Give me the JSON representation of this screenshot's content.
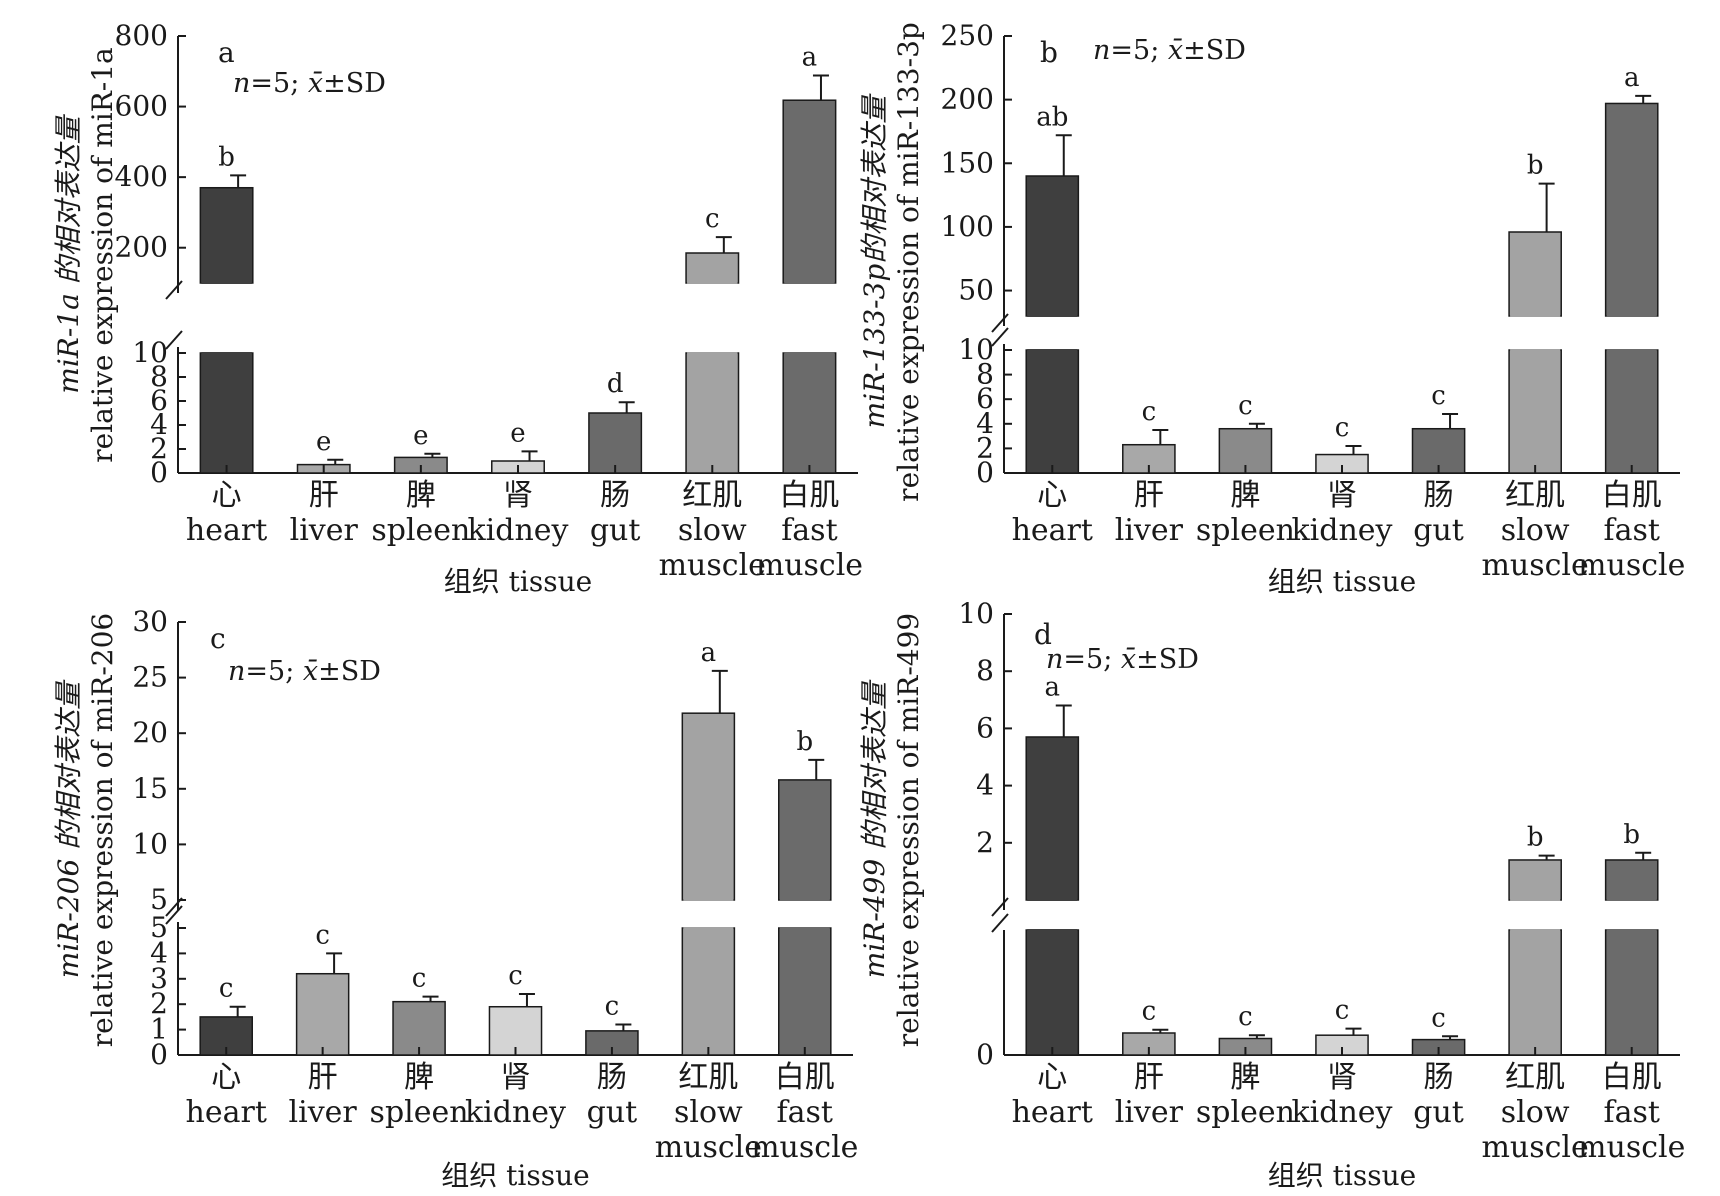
{
  "categories": [
    {
      "cn": "心",
      "en1": "heart",
      "en2": ""
    },
    {
      "cn": "肝",
      "en1": "liver",
      "en2": ""
    },
    {
      "cn": "脾",
      "en1": "spleen",
      "en2": ""
    },
    {
      "cn": "肾",
      "en1": "kidney",
      "en2": ""
    },
    {
      "cn": "肠",
      "en1": "gut",
      "en2": ""
    },
    {
      "cn": "红肌",
      "en1": "slow",
      "en2": "muscle"
    },
    {
      "cn": "白肌",
      "en1": "fast",
      "en2": "muscle"
    }
  ],
  "colors": [
    "#3f3f3f",
    "#a8a8a8",
    "#8a8a8a",
    "#d4d4d4",
    "#6a6a6a",
    "#a3a3a3",
    "#6b6b6b"
  ],
  "chart_data": [
    {
      "type": "bar",
      "panel": "a",
      "stat_note": "n=5; x̄±SD",
      "xlabel": "组织 tissue",
      "ylabel_line1": "miR-1a 的相对表达量",
      "ylabel_line2": "relative expression of miR-1a",
      "axis_break": true,
      "lower_ylim": [
        0,
        10
      ],
      "upper_ylim": [
        100,
        800
      ],
      "lower_ticks": [
        "0",
        "2",
        "4",
        "6",
        "8",
        "10"
      ],
      "upper_ticks": [
        "200",
        "400",
        "600",
        "800"
      ],
      "categories": [
        "heart",
        "liver",
        "spleen",
        "kidney",
        "gut",
        "slow muscle",
        "fast muscle"
      ],
      "values": [
        370,
        0.7,
        1.3,
        1.0,
        5.0,
        185,
        618
      ],
      "errors": [
        35,
        0.4,
        0.3,
        0.8,
        0.9,
        45,
        70
      ],
      "significance": [
        "b",
        "e",
        "e",
        "e",
        "d",
        "c",
        "a"
      ]
    },
    {
      "type": "bar",
      "panel": "b",
      "stat_note": "n=5; x̄±SD",
      "xlabel": "组织 tissue",
      "ylabel_line1": "miR-133-3p的相对表达量",
      "ylabel_line2": "relative expression of miR-133-3p",
      "axis_break": true,
      "lower_ylim": [
        0,
        10
      ],
      "upper_ylim": [
        30,
        250
      ],
      "lower_ticks": [
        "0",
        "2",
        "4",
        "6",
        "8",
        "10"
      ],
      "upper_ticks": [
        "50",
        "100",
        "150",
        "200",
        "250"
      ],
      "categories": [
        "heart",
        "liver",
        "spleen",
        "kidney",
        "gut",
        "slow muscle",
        "fast muscle"
      ],
      "values": [
        140,
        2.3,
        3.6,
        1.5,
        3.6,
        96,
        197
      ],
      "errors": [
        32,
        1.2,
        0.4,
        0.7,
        1.2,
        38,
        6
      ],
      "significance": [
        "ab",
        "c",
        "c",
        "c",
        "c",
        "b",
        "a"
      ]
    },
    {
      "type": "bar",
      "panel": "c",
      "stat_note": "n=5; x̄±SD",
      "xlabel": "组织 tissue",
      "ylabel_line1": "miR-206 的相对表达量",
      "ylabel_line2": "relative expression of miR-206",
      "axis_break": true,
      "lower_ylim": [
        0,
        5
      ],
      "upper_ylim": [
        5,
        30
      ],
      "lower_ticks": [
        "0",
        "1",
        "2",
        "3",
        "4",
        "5"
      ],
      "upper_ticks": [
        "5",
        "10",
        "15",
        "20",
        "25",
        "30"
      ],
      "categories": [
        "heart",
        "liver",
        "spleen",
        "kidney",
        "gut",
        "slow muscle",
        "fast muscle"
      ],
      "values": [
        1.5,
        3.2,
        2.1,
        1.9,
        0.95,
        21.8,
        15.8
      ],
      "errors": [
        0.4,
        0.8,
        0.2,
        0.5,
        0.25,
        3.8,
        1.8
      ],
      "significance": [
        "c",
        "c",
        "c",
        "c",
        "c",
        "a",
        "b"
      ]
    },
    {
      "type": "bar",
      "panel": "d",
      "stat_note": "n=5; x̄±SD",
      "xlabel": "组织 tissue",
      "ylabel_line1": "miR-499 的相对表达量",
      "ylabel_line2": "relative expression of miR-499",
      "axis_break": true,
      "lower_ylim": [
        0,
        0.5
      ],
      "upper_ylim": [
        0,
        10
      ],
      "lower_ticks": [
        "0"
      ],
      "upper_ticks": [
        "2",
        "4",
        "6",
        "8",
        "10"
      ],
      "categories": [
        "heart",
        "liver",
        "spleen",
        "kidney",
        "gut",
        "slow muscle",
        "fast muscle"
      ],
      "values": [
        5.7,
        0.2,
        0.15,
        0.18,
        0.14,
        1.4,
        1.4
      ],
      "errors": [
        1.1,
        0.03,
        0.03,
        0.06,
        0.03,
        0.15,
        0.25
      ],
      "significance": [
        "a",
        "c",
        "c",
        "c",
        "c",
        "b",
        "b"
      ]
    }
  ]
}
